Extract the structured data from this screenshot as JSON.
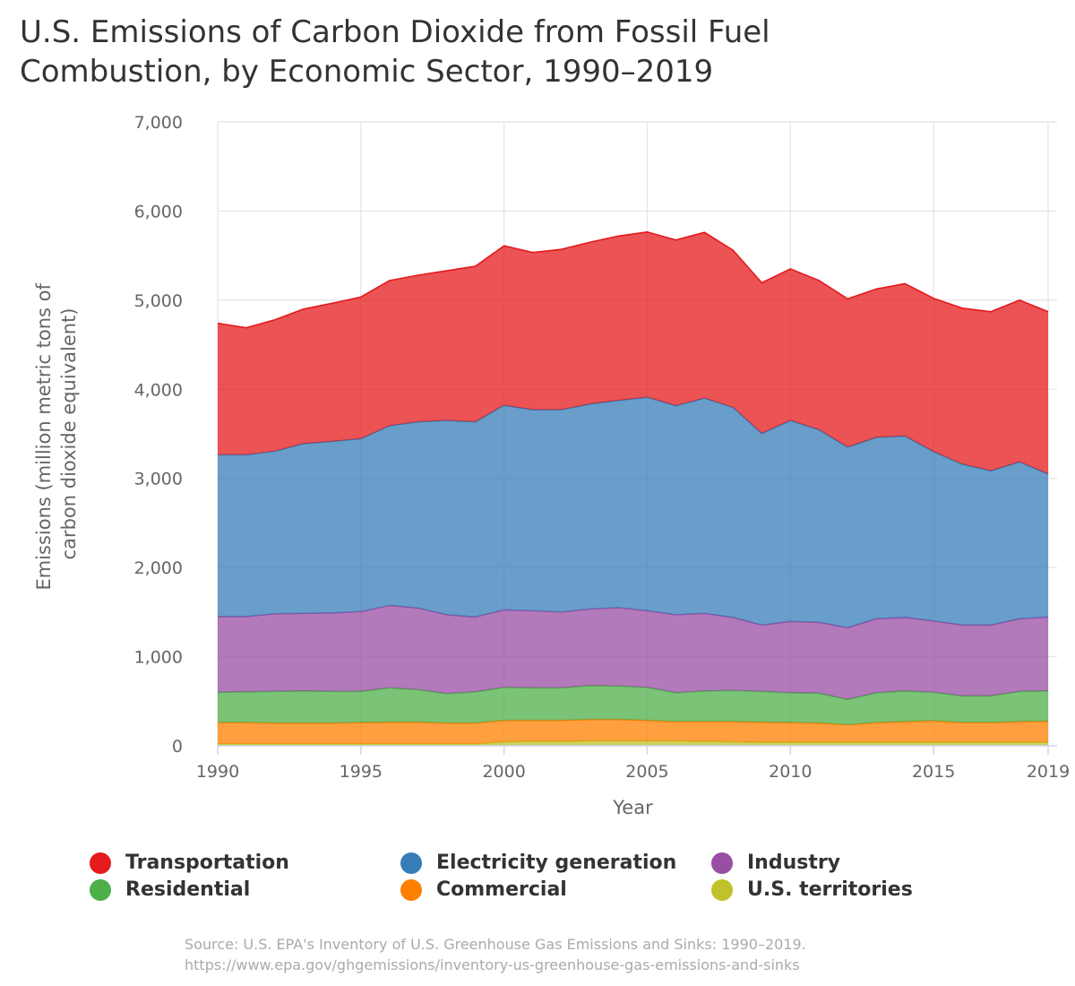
{
  "chart_data": {
    "type": "area",
    "stacked": true,
    "title": "U.S. Emissions of Carbon Dioxide from Fossil Fuel Combustion, by Economic Sector, 1990–2019",
    "title_lines": [
      "U.S. Emissions of Carbon Dioxide from Fossil Fuel",
      "Combustion, by Economic Sector, 1990–2019"
    ],
    "xlabel": "Year",
    "ylabel_lines": [
      "Emissions (million metric tons of",
      "carbon dioxide equivalent)"
    ],
    "ylim": [
      0,
      7000
    ],
    "y_ticks": [
      0,
      1000,
      2000,
      3000,
      4000,
      5000,
      6000,
      7000
    ],
    "y_tick_labels": [
      "0",
      "1,000",
      "2,000",
      "3,000",
      "4,000",
      "5,000",
      "6,000",
      "7,000"
    ],
    "xlim": [
      1990,
      2019
    ],
    "x_ticks": [
      1990,
      1995,
      2000,
      2005,
      2010,
      2015,
      2019
    ],
    "grid": true,
    "legend_position": "bottom",
    "x": [
      1990,
      1991,
      1992,
      1993,
      1994,
      1995,
      1996,
      1997,
      1998,
      1999,
      2000,
      2001,
      2002,
      2003,
      2004,
      2005,
      2006,
      2007,
      2008,
      2009,
      2010,
      2011,
      2012,
      2013,
      2014,
      2015,
      2016,
      2017,
      2018,
      2019
    ],
    "series": [
      {
        "name": "U.S. territories",
        "color": "#bfc22a",
        "values": [
          20,
          20,
          20,
          20,
          20,
          20,
          20,
          20,
          20,
          20,
          45,
          50,
          50,
          55,
          55,
          55,
          55,
          50,
          45,
          40,
          40,
          40,
          40,
          40,
          40,
          40,
          40,
          40,
          40,
          40
        ]
      },
      {
        "name": "Commercial",
        "color": "#ff7f00",
        "values": [
          240,
          240,
          235,
          235,
          235,
          240,
          245,
          245,
          235,
          235,
          240,
          235,
          235,
          240,
          240,
          230,
          215,
          220,
          225,
          225,
          220,
          215,
          195,
          220,
          230,
          240,
          220,
          220,
          230,
          235
        ]
      },
      {
        "name": "Residential",
        "color": "#4daf4a",
        "values": [
          340,
          345,
          355,
          360,
          355,
          350,
          385,
          365,
          330,
          350,
          370,
          365,
          365,
          380,
          375,
          370,
          325,
          345,
          350,
          345,
          335,
          335,
          285,
          335,
          345,
          320,
          300,
          300,
          340,
          340
        ]
      },
      {
        "name": "Industry",
        "color": "#984ea3",
        "values": [
          850,
          845,
          870,
          870,
          880,
          895,
          925,
          915,
          885,
          840,
          870,
          865,
          850,
          860,
          880,
          860,
          875,
          870,
          820,
          745,
          800,
          795,
          805,
          830,
          825,
          800,
          795,
          795,
          815,
          830
        ]
      },
      {
        "name": "Electricity generation",
        "color": "#377eb8",
        "values": [
          1815,
          1815,
          1825,
          1905,
          1925,
          1940,
          2015,
          2090,
          2180,
          2190,
          2295,
          2255,
          2270,
          2300,
          2325,
          2395,
          2345,
          2415,
          2355,
          2150,
          2255,
          2160,
          2025,
          2035,
          2035,
          1900,
          1805,
          1730,
          1760,
          1605
        ]
      },
      {
        "name": "Transportation",
        "color": "#e41a1c",
        "values": [
          1475,
          1425,
          1475,
          1510,
          1550,
          1590,
          1630,
          1645,
          1680,
          1745,
          1790,
          1765,
          1800,
          1815,
          1845,
          1855,
          1860,
          1860,
          1765,
          1690,
          1700,
          1675,
          1665,
          1665,
          1710,
          1720,
          1750,
          1785,
          1815,
          1820
        ]
      }
    ]
  },
  "legend": {
    "columns": [
      [
        "Transportation",
        "Residential"
      ],
      [
        "Electricity generation",
        "Commercial"
      ],
      [
        "Industry",
        "U.S. territories"
      ]
    ],
    "colors": {
      "Transportation": "#e41a1c",
      "Residential": "#4daf4a",
      "Electricity generation": "#377eb8",
      "Commercial": "#ff7f00",
      "Industry": "#984ea3",
      "U.S. territories": "#bfc22a"
    }
  },
  "source": {
    "line1": "Source: U.S. EPA's Inventory of U.S. Greenhouse Gas Emissions and Sinks: 1990–2019.",
    "line2": "https://www.epa.gov/ghgemissions/inventory-us-greenhouse-gas-emissions-and-sinks"
  }
}
